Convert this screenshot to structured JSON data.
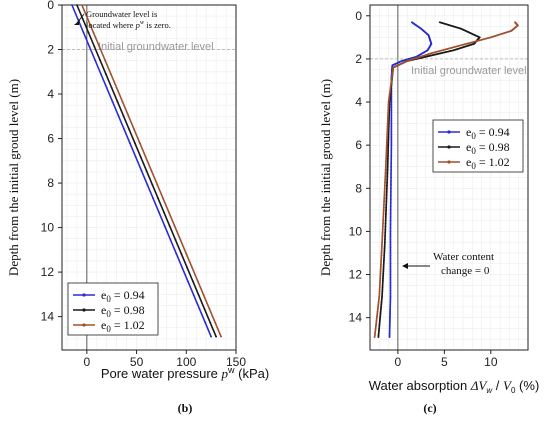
{
  "chart_data": [
    {
      "type": "line",
      "caption": "(b)",
      "xlabel": "Pore water pressure",
      "xlabel_symbol": "p",
      "xlabel_sup": "w",
      "xlabel_unit": "(kPa)",
      "ylabel": "Depth from the initial groud level (m)",
      "xlim": [
        -25,
        150
      ],
      "ylim": [
        0,
        15.5
      ],
      "y_inverted": true,
      "xticks": [
        0,
        50,
        100,
        150
      ],
      "yticks": [
        0,
        2,
        4,
        6,
        8,
        10,
        12,
        14
      ],
      "grid": true,
      "legend_position": "bottom-left",
      "reference_line_text": "Initial groundwater level",
      "annotation_line1": "Groundwater level is",
      "annotation_line2": "located where",
      "annotation_symbol": "p",
      "annotation_sup": "w",
      "annotation_tail": "is zero.",
      "series": [
        {
          "name": "0.94",
          "color": "#2b2bd6",
          "x": [
            -15,
            125
          ],
          "y": [
            0,
            14.9
          ]
        },
        {
          "name": "0.98",
          "color": "#1a1a1a",
          "x": [
            -10,
            130
          ],
          "y": [
            0,
            14.9
          ]
        },
        {
          "name": "1.02",
          "color": "#a0522d",
          "x": [
            -5,
            135
          ],
          "y": [
            0,
            14.9
          ]
        }
      ]
    },
    {
      "type": "line",
      "caption": "(c)",
      "xlabel": "Water absorption",
      "xlabel_symbol": "ΔV",
      "xlabel_sub": "w",
      "xlabel_symbol2": "V",
      "xlabel_sub2": "0",
      "xlabel_unit": "(%)",
      "ylabel": "Depth from the initial groud level (m)",
      "xlim": [
        -3,
        14
      ],
      "ylim": [
        -0.5,
        15.5
      ],
      "y_inverted": true,
      "xticks": [
        0,
        5,
        10
      ],
      "yticks": [
        0,
        2,
        4,
        6,
        8,
        10,
        12,
        14
      ],
      "grid": true,
      "legend_position": "top-left",
      "reference_line_text": "Initial groundwater level",
      "annotation_line1": "Water content",
      "annotation_line2": "change = 0",
      "series": [
        {
          "name": "0.94",
          "color": "#2b2bd6",
          "x": [
            1.5,
            2.5,
            3.3,
            3.6,
            3.2,
            2.0,
            0.4,
            -0.6,
            -0.7,
            -0.7,
            -0.8,
            -0.8,
            -0.9
          ],
          "y": [
            0.3,
            0.6,
            0.9,
            1.3,
            1.6,
            1.9,
            2.1,
            2.3,
            3.0,
            6.0,
            10.0,
            13.0,
            14.9
          ]
        },
        {
          "name": "0.98",
          "color": "#1a1a1a",
          "x": [
            4.5,
            6.8,
            8.8,
            8.2,
            6.0,
            3.5,
            1.0,
            -0.5,
            -0.9,
            -1.1,
            -1.4,
            -1.7,
            -2.1
          ],
          "y": [
            0.3,
            0.6,
            1.0,
            1.3,
            1.6,
            1.85,
            2.1,
            2.4,
            4.0,
            7.0,
            10.5,
            13.0,
            14.9
          ]
        },
        {
          "name": "1.02",
          "color": "#a0522d",
          "x": [
            12.6,
            12.9,
            12.2,
            10.0,
            6.5,
            3.5,
            1.0,
            -0.5,
            -1.0,
            -1.3,
            -1.7,
            -2.0,
            -2.5
          ],
          "y": [
            0.3,
            0.45,
            0.7,
            1.0,
            1.4,
            1.75,
            2.1,
            2.4,
            4.0,
            7.0,
            10.5,
            13.0,
            14.9
          ]
        }
      ]
    }
  ],
  "legend_label_prefix": "e",
  "legend_label_sub": "0",
  "legend_label_eq": " = "
}
